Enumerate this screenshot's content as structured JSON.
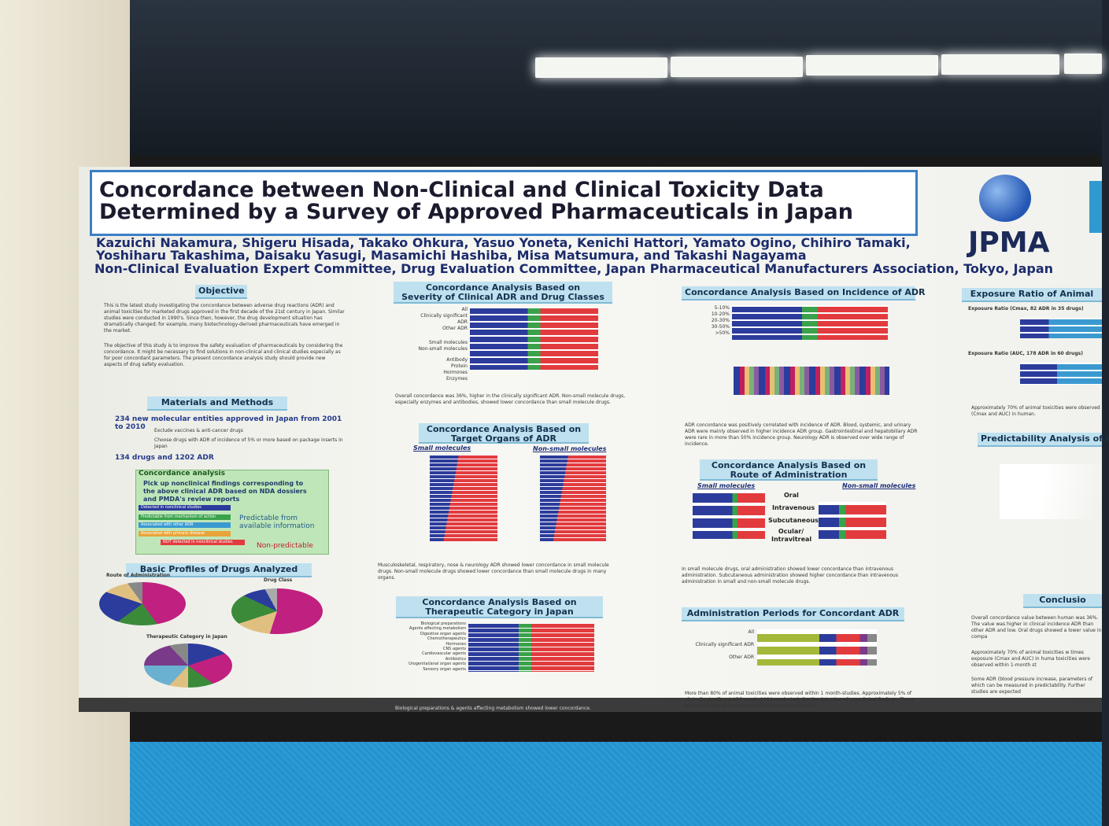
{
  "header": {
    "title": [
      "Concordance between Non-Clinical and Clinical Toxicity Data",
      "Determined by a Survey of Approved Pharmaceuticals in Japan"
    ],
    "authors": [
      "Kazuichi Nakamura, Shigeru Hisada, Takako Ohkura, Yasuo Yoneta, Kenichi Hattori, Yamato Ogino, Chihiro Tamaki,",
      "Yoshiharu Takashima, Daisaku Yasugi, Masamichi Hashiba, Misa Matsumura, and Takashi Nagayama"
    ],
    "affiliation": "Non-Clinical Evaluation Expert Committee, Drug Evaluation Committee, Japan Pharmaceutical Manufacturers Association, Tokyo, Japan",
    "logo": "JPMA"
  },
  "objective": {
    "heading": "Objective",
    "text": [
      "This is the latest study investigating the concordance between adverse drug reactions (ADR) and animal toxicities for marketed drugs approved in the first decade of the 21st century in Japan. Similar studies were conducted in 1990's. Since then, however, the drug development situation has dramatically changed; for example, many biotechnology-derived pharmaceuticals have emerged in the market.",
      "The objective of this study is to improve the safety evaluation of pharmaceuticals by considering the concordance. It might be necessary to find solutions in non-clinical and clinical studies especially as for poor concordant parameters. The present concordance analysis study should provide new aspects of drug safety evaluation."
    ]
  },
  "methods": {
    "heading": "Materials and Methods",
    "steps": [
      "234 new molecular entities approved in Japan from 2001 to 2010",
      "Exclude vaccines & anti-cancer drugs",
      "Choose drugs with ADR of incidence of 5% or more based on package inserts in Japan",
      "134 drugs and 1202 ADR"
    ],
    "box_title": "Concordance analysis",
    "box_text": "Pick up nonclinical findings corresponding to the above clinical ADR based on NDA dossiers and PMDA's review reports",
    "legend": [
      "Detected in nonclinical studies",
      "Predictable from mechanism of action",
      "Associated with other ADR",
      "Associated with primary disease",
      "NOT detected in nonclinical studies"
    ],
    "predictable": "Predictable from available information",
    "non_predictable": "Non-predictable"
  },
  "profiles": {
    "heading": "Basic Profiles of Drugs Analyzed",
    "labels": [
      "Route of Administration",
      "Drug Class",
      "Therapeutic Category in Japan"
    ]
  },
  "severity": {
    "heading": [
      "Concordance Analysis Based on",
      "Severity of Clinical ADR and Drug Classes"
    ],
    "rows": [
      "All",
      "Clinically significant ADR",
      "Other ADR",
      "Small molecules",
      "Non-small molecules",
      "Antibody",
      "Protein",
      "Hormones",
      "Enzymes"
    ],
    "caption": "Overall concordance was 36%, higher in the clinically significant ADR. Non-small molecule drugs, especially enzymes and antibodies, showed lower concordance than small molecule drugs."
  },
  "organs": {
    "heading": [
      "Concordance Analysis Based on",
      "Target Organs of ADR"
    ],
    "groups": [
      "Small molecules",
      "Non-small molecules"
    ],
    "caption": "Musculoskeletal, respiratory, nose & neurology ADR showed lower concordance in small molecule drugs. Non-small molecule drugs showed lower concordance than small molecule drugs in many organs."
  },
  "therapeutic": {
    "heading": [
      "Concordance Analysis Based on",
      "Therapeutic Category in Japan"
    ],
    "rows": [
      "Biological preparations",
      "Agents affecting metabolism",
      "Digestive organ agents",
      "Chemotherapeutics",
      "Hormones",
      "CNS agents",
      "Cardiovascular agents",
      "Antibiotics",
      "Urogenital/anal organ agents",
      "Sensory organ agents"
    ],
    "caption": "Biological preparations & agents affecting metabolism showed lower concordance."
  },
  "incidence": {
    "heading": "Concordance Analysis Based on Incidence of ADR",
    "rows": [
      "5-10%",
      "10-20%",
      "20-30%",
      "30-50%",
      ">50%"
    ],
    "caption": "ADR concordance was positively correlated with incidence of ADR. Blood, systemic, and urinary ADR were mainly observed in higher incidence ADR group. Gastrointestinal and hepatobiliary ADR were rare in more than 50% incidence group. Neurology ADR is observed over wide range of incidence."
  },
  "route": {
    "heading": [
      "Concordance Analysis Based on",
      "Route of Administration"
    ],
    "groups": [
      "Small molecules",
      "Non-small molecules"
    ],
    "rows": [
      "Oral",
      "Intravenous",
      "Subcutaneous",
      "Ocular/ Intravitreal"
    ],
    "caption": "In small molecule drugs, oral administration showed lower concordance than intravenous administration. Subcutaneous administration showed higher concordance than intravenous administration in small and non-small molecule drugs."
  },
  "periods": {
    "heading": "Administration Periods for Concordant ADR",
    "rows": [
      "All",
      "Clinically significant ADR",
      "Other ADR"
    ],
    "caption": "More than 80% of animal toxicities were observed within 1 month-studies. Approximately 5% of clinically significant ADR needed 104-week study for the detection of non-clinical findings. These ADR were related to decrease of leukocytes/neutrophils."
  },
  "exposure": {
    "heading": "Exposure Ratio of Animal",
    "lines": [
      "Exposure Ratio (Cmax, 82 ADR in 35 drugs)",
      "Exposure Ratio (AUC, 178 ADR in 60 drugs)"
    ],
    "caption": "Approximately 70% of animal toxicities were observed (Cmax and AUC) in human."
  },
  "predictability": {
    "heading": "Predictability Analysis of I"
  },
  "conclusion": {
    "heading": "Conclusio",
    "points": [
      "Overall concordance value between human was 36%. The value was higher in clinical incidence ADR than other ADR and low. Oral drugs showed a lower value in compa",
      "Approximately 70% of animal toxicities w times exposure (Cmax and AUC) in huma toxicities were observed within 1-month st",
      "Some ADR (blood pressure increase, parameters of which can be measured in predictability. Further studies are expected"
    ]
  }
}
